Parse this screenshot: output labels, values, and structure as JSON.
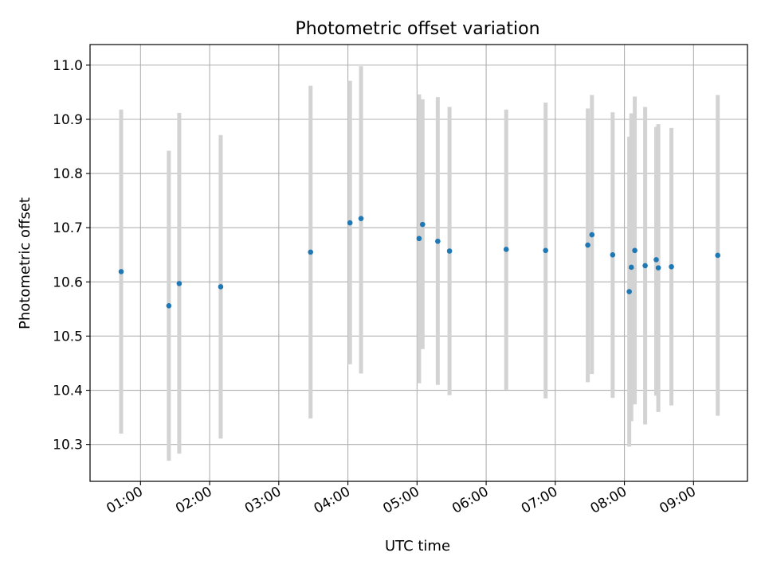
{
  "chart_data": {
    "type": "scatter",
    "title": "Photometric offset variation",
    "xlabel": "UTC time",
    "ylabel": "Photometric offset",
    "x_tick_labels": [
      "01:00",
      "02:00",
      "03:00",
      "04:00",
      "05:00",
      "06:00",
      "07:00",
      "08:00",
      "09:00"
    ],
    "y_tick_labels": [
      "10.3",
      "10.4",
      "10.5",
      "10.6",
      "10.7",
      "10.8",
      "10.9",
      "11.0"
    ],
    "x_range_hours": [
      0.27,
      9.78
    ],
    "ylim": [
      10.232,
      11.038
    ],
    "grid": true,
    "error_bar_color": "#d3d3d3",
    "marker_color": "#1f77b4",
    "points": [
      {
        "t": 0.72,
        "y": 10.619,
        "lo": 10.32,
        "hi": 10.918
      },
      {
        "t": 1.41,
        "y": 10.556,
        "lo": 10.27,
        "hi": 10.842
      },
      {
        "t": 1.56,
        "y": 10.597,
        "lo": 10.283,
        "hi": 10.912
      },
      {
        "t": 2.16,
        "y": 10.591,
        "lo": 10.311,
        "hi": 10.871
      },
      {
        "t": 3.46,
        "y": 10.655,
        "lo": 10.348,
        "hi": 10.962
      },
      {
        "t": 4.03,
        "y": 10.709,
        "lo": 10.448,
        "hi": 10.971
      },
      {
        "t": 4.19,
        "y": 10.717,
        "lo": 10.431,
        "hi": 10.998
      },
      {
        "t": 5.03,
        "y": 10.68,
        "lo": 10.413,
        "hi": 10.946
      },
      {
        "t": 5.08,
        "y": 10.706,
        "lo": 10.476,
        "hi": 10.937
      },
      {
        "t": 5.3,
        "y": 10.675,
        "lo": 10.41,
        "hi": 10.941
      },
      {
        "t": 5.47,
        "y": 10.657,
        "lo": 10.391,
        "hi": 10.923
      },
      {
        "t": 6.29,
        "y": 10.66,
        "lo": 10.401,
        "hi": 10.918
      },
      {
        "t": 6.86,
        "y": 10.658,
        "lo": 10.385,
        "hi": 10.931
      },
      {
        "t": 7.47,
        "y": 10.668,
        "lo": 10.415,
        "hi": 10.92
      },
      {
        "t": 7.53,
        "y": 10.687,
        "lo": 10.43,
        "hi": 10.945
      },
      {
        "t": 7.83,
        "y": 10.65,
        "lo": 10.386,
        "hi": 10.913
      },
      {
        "t": 8.07,
        "y": 10.582,
        "lo": 10.296,
        "hi": 10.868
      },
      {
        "t": 8.1,
        "y": 10.627,
        "lo": 10.343,
        "hi": 10.911
      },
      {
        "t": 8.15,
        "y": 10.658,
        "lo": 10.374,
        "hi": 10.942
      },
      {
        "t": 8.3,
        "y": 10.63,
        "lo": 10.337,
        "hi": 10.923
      },
      {
        "t": 8.46,
        "y": 10.641,
        "lo": 10.39,
        "hi": 10.886
      },
      {
        "t": 8.49,
        "y": 10.626,
        "lo": 10.36,
        "hi": 10.891
      },
      {
        "t": 8.68,
        "y": 10.628,
        "lo": 10.372,
        "hi": 10.884
      },
      {
        "t": 9.35,
        "y": 10.649,
        "lo": 10.353,
        "hi": 10.945
      }
    ]
  }
}
